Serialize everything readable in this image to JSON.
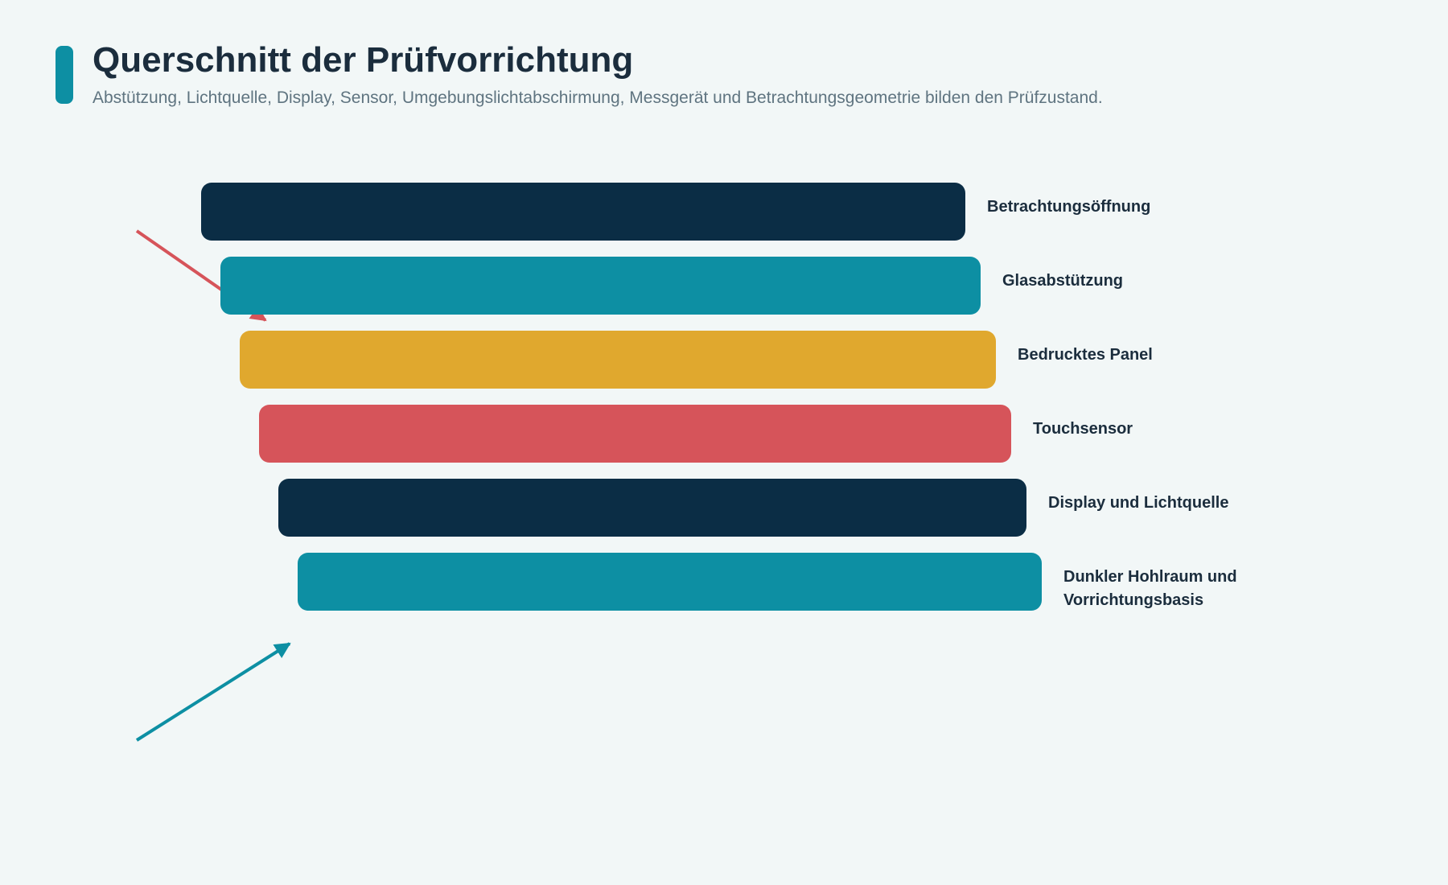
{
  "header": {
    "title": "Querschnitt der Prüfvorrichtung",
    "subtitle": "Abstützung, Lichtquelle, Display, Sensor, Umgebungslichtabschirmung, Messgerät und Betrachtungsgeometrie bilden den Prüfzustand.",
    "accent_color": "#0d8fa3"
  },
  "layers": [
    {
      "id": "betrachtungsoeffnung",
      "label": "Betrachtungsöffnung",
      "color": "#0b2d45"
    },
    {
      "id": "glasabstuetzung",
      "label": "Glasabstützung",
      "color": "#0d8fa3"
    },
    {
      "id": "bedrucktes-panel",
      "label": "Bedrucktes Panel",
      "color": "#e0a82e"
    },
    {
      "id": "touchsensor",
      "label": "Touchsensor",
      "color": "#d6545a"
    },
    {
      "id": "display-und-lichtquelle",
      "label": "Display und Lichtquelle",
      "color": "#0b2d45"
    },
    {
      "id": "dunkler-hohlraum",
      "label": "Dunkler Hohlraum und Vorrichtungsbasis",
      "color": "#0d8fa3"
    }
  ],
  "arrows": [
    {
      "id": "incident-light",
      "color": "#d6545a",
      "direction": "down-right"
    },
    {
      "id": "upward-light",
      "color": "#0d8fa3",
      "direction": "up-right"
    }
  ]
}
